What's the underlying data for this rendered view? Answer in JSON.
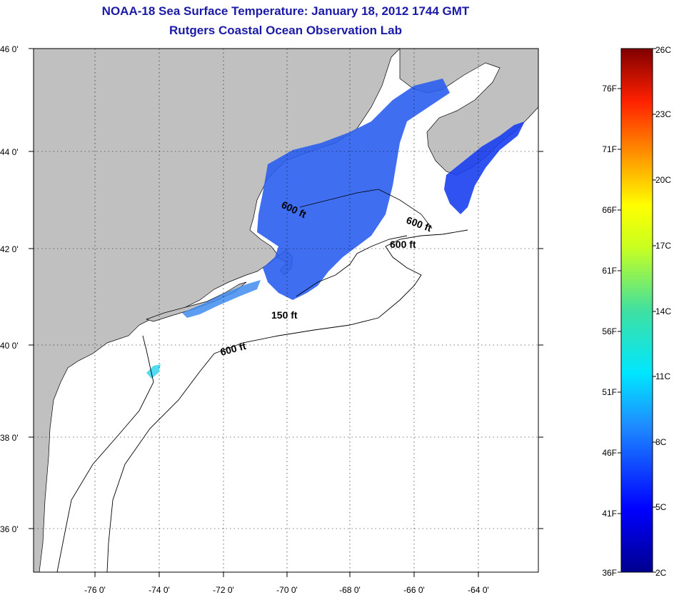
{
  "title": "NOAA-18 Sea Surface Temperature:  January 18, 2012 1744 GMT",
  "subtitle": "Rutgers Coastal Ocean Observation Lab",
  "axes": {
    "lat_ticks": [
      "46 0'",
      "44 0'",
      "42 0'",
      "40 0'",
      "38 0'",
      "36 0'"
    ],
    "lon_ticks": [
      "-76 0'",
      "-74 0'",
      "-72 0'",
      "-70 0'",
      "-68 0'",
      "-66 0'",
      "-64 0'"
    ]
  },
  "contours": [
    {
      "label": "600 ft"
    },
    {
      "label": "600 ft"
    },
    {
      "label": "600 ft"
    },
    {
      "label": "150 ft"
    },
    {
      "label": "600 ft"
    }
  ],
  "colorbar": {
    "celsius_labels": [
      "26C",
      "23C",
      "20C",
      "17C",
      "14C",
      "11C",
      "8C",
      "5C",
      "2C"
    ],
    "fahrenheit_labels": [
      "76F",
      "71F",
      "66F",
      "61F",
      "56F",
      "51F",
      "46F",
      "41F",
      "36F"
    ]
  },
  "colors": {
    "land": "#c0c0c0",
    "ocean": "#ffffff",
    "title": "#1a1aa6"
  }
}
